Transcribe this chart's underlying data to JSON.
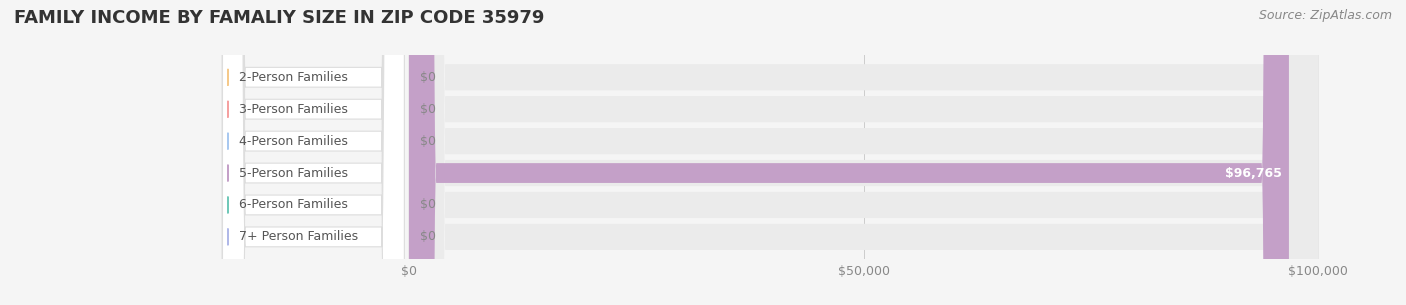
{
  "title": "FAMILY INCOME BY FAMALIY SIZE IN ZIP CODE 35979",
  "source": "Source: ZipAtlas.com",
  "categories": [
    "2-Person Families",
    "3-Person Families",
    "4-Person Families",
    "5-Person Families",
    "6-Person Families",
    "7+ Person Families"
  ],
  "values": [
    0,
    0,
    0,
    96765,
    0,
    0
  ],
  "bar_colors": [
    "#f5c98a",
    "#f5a0a0",
    "#a8c8f0",
    "#c4a0c8",
    "#70c8b8",
    "#b0b8e8"
  ],
  "bar_label_colors": [
    "#888888",
    "#888888",
    "#888888",
    "#ffffff",
    "#888888",
    "#888888"
  ],
  "xlim": [
    0,
    100000
  ],
  "xticks": [
    0,
    50000,
    100000
  ],
  "xtick_labels": [
    "$0",
    "$50,000",
    "$100,000"
  ],
  "background_color": "#f5f5f5",
  "bar_bg_color": "#ebebeb",
  "title_fontsize": 13,
  "label_fontsize": 9,
  "source_fontsize": 9,
  "value_label": "$96,765"
}
